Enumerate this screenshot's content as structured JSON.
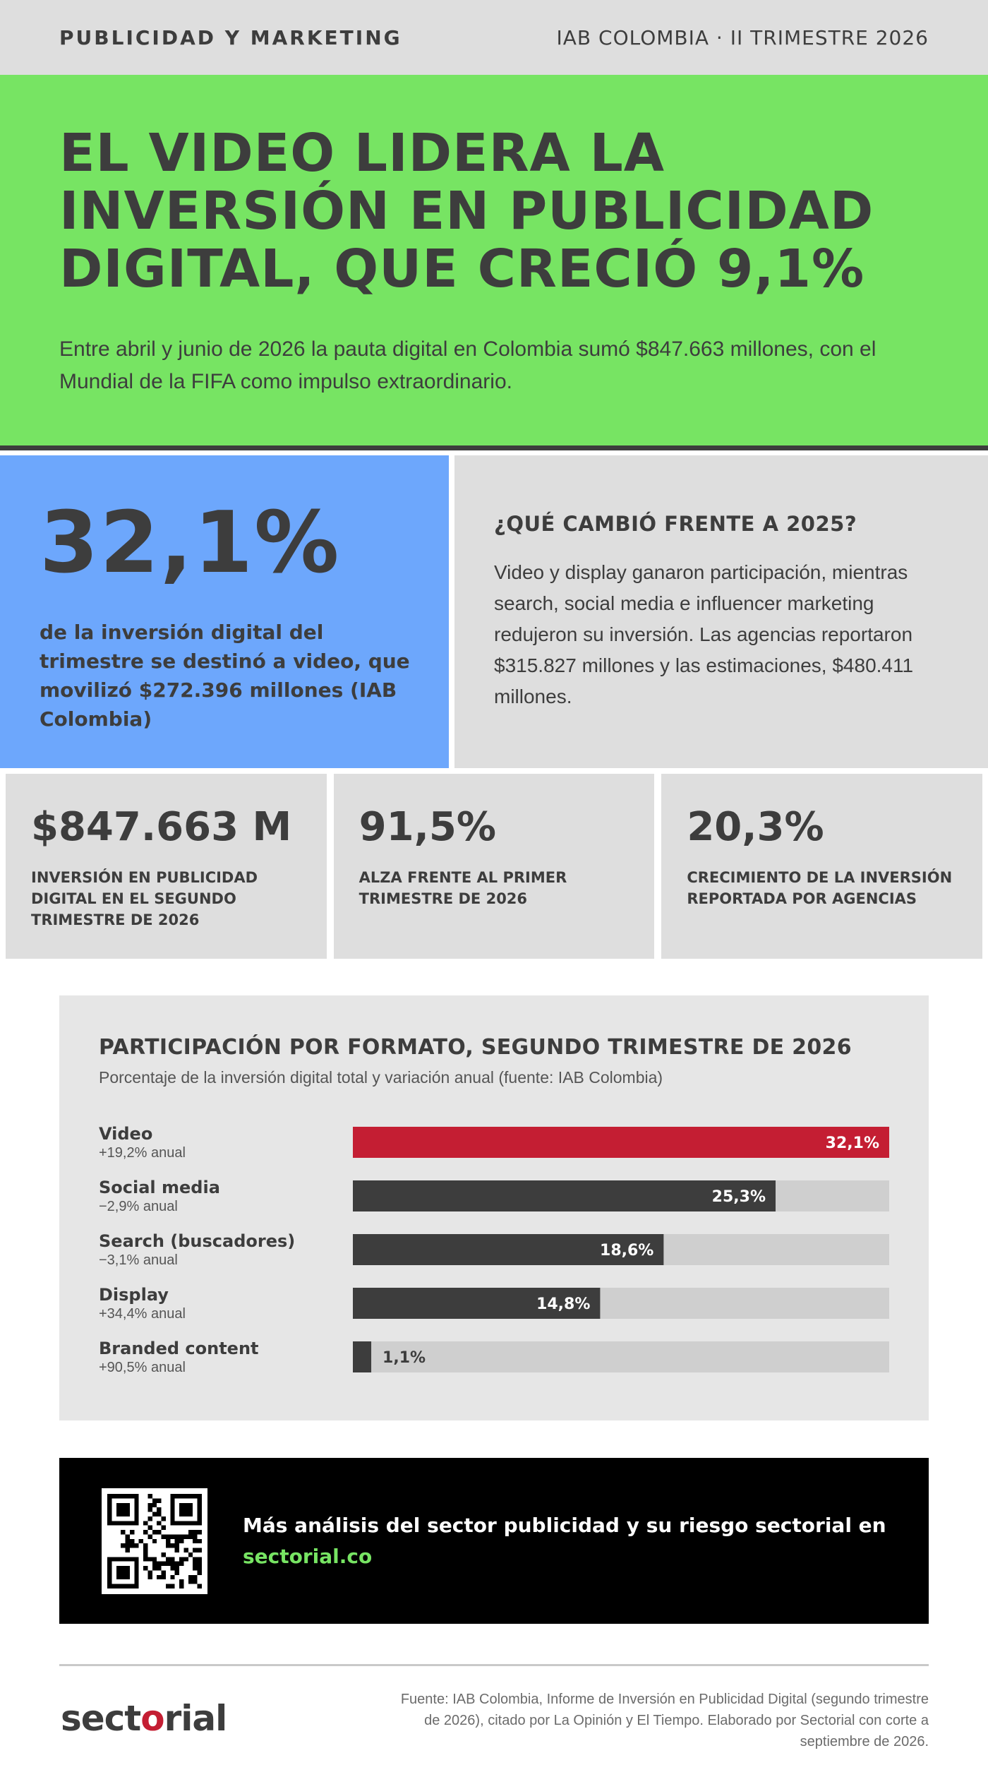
{
  "header": {
    "section": "PUBLICIDAD Y MARKETING",
    "edition": "IAB COLOMBIA · II TRIMESTRE 2026"
  },
  "hero": {
    "title": "EL VIDEO LIDERA LA INVERSIÓN EN PUBLICIDAD DIGITAL, QUE CRECIÓ 9,1%",
    "lead": "Entre abril y junio de 2026 la pauta digital en Colombia sumó $847.663 millones, con el Mundial de la FIFA como impulso extraordinario."
  },
  "highlight": {
    "value": "32,1%",
    "description": "de la inversión digital del trimestre se destinó a video, que movilizó $272.396 millones (IAB Colombia)"
  },
  "changes": {
    "title": "¿QUÉ CAMBIÓ FRENTE A 2025?",
    "body": "Video y display ganaron participación, mientras search, social media e influencer marketing redujeron su inversión. Las agencias reportaron $315.827 millones y las estimaciones, $480.411 millones."
  },
  "kpis": [
    {
      "value": "$847.663 M",
      "label": "INVERSIÓN EN PUBLICIDAD DIGITAL EN EL SEGUNDO TRIMESTRE DE 2026"
    },
    {
      "value": "91,5%",
      "label": "ALZA FRENTE AL PRIMER TRIMESTRE DE 2026"
    },
    {
      "value": "20,3%",
      "label": "CRECIMIENTO DE LA INVERSIÓN REPORTADA POR AGENCIAS"
    }
  ],
  "chart_data": {
    "type": "bar",
    "orientation": "horizontal",
    "title": "PARTICIPACIÓN POR FORMATO, SEGUNDO TRIMESTRE DE 2026",
    "subtitle": "Porcentaje de la inversión digital total y variación anual (fuente: IAB Colombia)",
    "categories": [
      "Video",
      "Social media",
      "Search (buscadores)",
      "Display",
      "Branded content"
    ],
    "sublabels": [
      "+19,2% anual",
      "−2,9% anual",
      "−3,1% anual",
      "+34,4% anual",
      "+90,5% anual"
    ],
    "values": [
      32.1,
      25.3,
      18.6,
      14.8,
      1.1
    ],
    "value_labels": [
      "32,1%",
      "25,3%",
      "18,6%",
      "14,8%",
      "1,1%"
    ],
    "xlim": [
      0,
      32.1
    ],
    "colors": {
      "highlight": "#c41e33",
      "bar": "#3d3d3d",
      "track": "#cfcfcf"
    }
  },
  "cta": {
    "text": "Más análisis del sector publicidad y su riesgo sectorial en",
    "link": "sectorial.co"
  },
  "footer": {
    "logo": "sectorial",
    "source": "Fuente: IAB Colombia, Informe de Inversión en Publicidad Digital (segundo trimestre de 2026), citado por La Opinión y El Tiempo. Elaborado por Sectorial con corte a septiembre de 2026."
  },
  "colors": {
    "accent_green": "#77e463",
    "accent_blue": "#6da7fc",
    "accent_red": "#c41e33",
    "dark": "#3d3d3d"
  }
}
